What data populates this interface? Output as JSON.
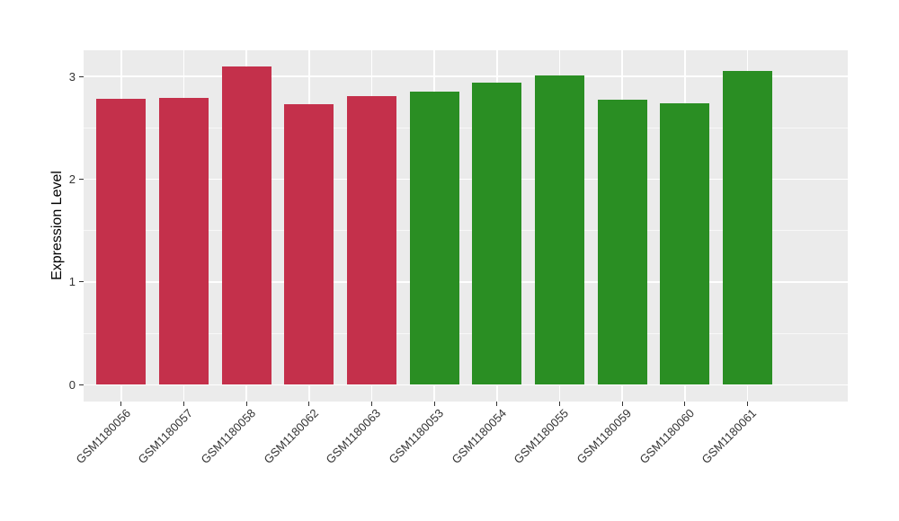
{
  "chart_data": {
    "type": "bar",
    "title": "",
    "xlabel": "",
    "ylabel": "Expression Level",
    "categories": [
      "GSM1180056",
      "GSM1180057",
      "GSM1180058",
      "GSM1180062",
      "GSM1180063",
      "GSM1180053",
      "GSM1180054",
      "GSM1180055",
      "GSM1180059",
      "GSM1180060",
      "GSM1180061"
    ],
    "values": [
      2.78,
      2.79,
      3.1,
      2.73,
      2.81,
      2.85,
      2.94,
      3.01,
      2.77,
      2.74,
      3.05
    ],
    "groups": [
      "red",
      "red",
      "red",
      "red",
      "red",
      "green",
      "green",
      "green",
      "green",
      "green",
      "green"
    ],
    "group_colors": {
      "red": "#C4304B",
      "green": "#2A8E23"
    },
    "yticks": [
      0,
      1,
      2,
      3
    ],
    "yticks_minor": [
      0.5,
      1.5,
      2.5
    ],
    "ylim": [
      -0.163,
      3.254
    ],
    "grid": true,
    "legend_position": "none",
    "panel_background": "#EBEBEB",
    "grid_color": "#FFFFFF",
    "axis_text_color": "#333333"
  }
}
